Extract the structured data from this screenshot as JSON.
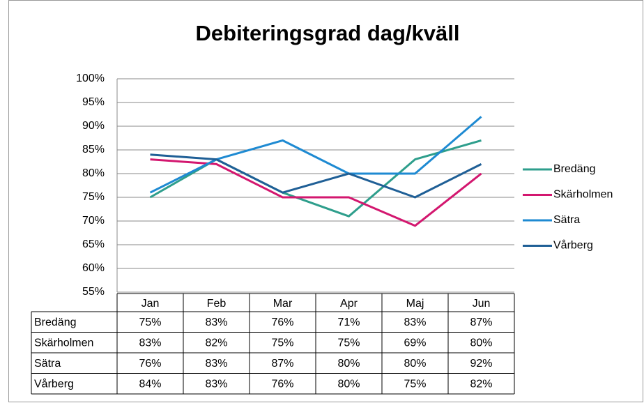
{
  "chart_data": {
    "type": "line",
    "title": "Debiteringsgrad dag/kväll",
    "categories": [
      "Jan",
      "Feb",
      "Mar",
      "Apr",
      "Maj",
      "Jun"
    ],
    "series": [
      {
        "name": "Bredäng",
        "color": "#2e9e8c",
        "values": [
          75,
          83,
          76,
          71,
          83,
          87
        ],
        "value_labels": [
          "75%",
          "83%",
          "76%",
          "71%",
          "83%",
          "87%"
        ]
      },
      {
        "name": "Skärholmen",
        "color": "#d3176f",
        "values": [
          83,
          82,
          75,
          75,
          69,
          80
        ],
        "value_labels": [
          "83%",
          "82%",
          "75%",
          "75%",
          "69%",
          "80%"
        ]
      },
      {
        "name": "Sätra",
        "color": "#1e8ad2",
        "values": [
          76,
          83,
          87,
          80,
          80,
          92
        ],
        "value_labels": [
          "76%",
          "83%",
          "87%",
          "80%",
          "80%",
          "92%"
        ]
      },
      {
        "name": "Vårberg",
        "color": "#1f5f96",
        "values": [
          84,
          83,
          76,
          80,
          75,
          82
        ],
        "value_labels": [
          "84%",
          "83%",
          "76%",
          "80%",
          "75%",
          "82%"
        ]
      }
    ],
    "ylim": [
      55,
      100
    ],
    "yticks": [
      {
        "value": 55,
        "label": "55%"
      },
      {
        "value": 60,
        "label": "60%"
      },
      {
        "value": 65,
        "label": "65%"
      },
      {
        "value": 70,
        "label": "70%"
      },
      {
        "value": 75,
        "label": "75%"
      },
      {
        "value": 80,
        "label": "80%"
      },
      {
        "value": 85,
        "label": "85%"
      },
      {
        "value": 90,
        "label": "90%"
      },
      {
        "value": 95,
        "label": "95%"
      },
      {
        "value": 100,
        "label": "100%"
      }
    ],
    "grid": true,
    "legend": "right"
  }
}
